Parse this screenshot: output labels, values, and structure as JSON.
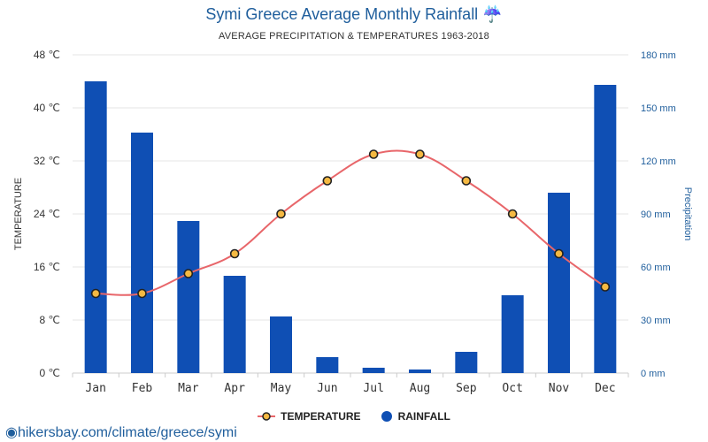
{
  "title": "Symi Greece Average Monthly Rainfall ☔",
  "subtitle": "AVERAGE PRECIPITATION & TEMPERATURES 1963-2018",
  "source": "hikersbay.com/climate/greece/symi",
  "colors": {
    "temperature_line": "#e8666a",
    "temperature_marker": "#f5b942",
    "rainfall": "#0f4fb4",
    "title": "#1f5e9c"
  },
  "chart_data": {
    "type": "bar",
    "categories": [
      "Jan",
      "Feb",
      "Mar",
      "Apr",
      "May",
      "Jun",
      "Jul",
      "Aug",
      "Sep",
      "Oct",
      "Nov",
      "Dec"
    ],
    "series": [
      {
        "name": "TEMPERATURE",
        "type": "line",
        "axis": "left",
        "values": [
          12,
          12,
          15,
          18,
          24,
          29,
          33,
          33,
          29,
          24,
          18,
          13
        ]
      },
      {
        "name": "RAINFALL",
        "type": "bar",
        "axis": "right",
        "values": [
          165,
          136,
          86,
          55,
          32,
          9,
          3,
          2,
          12,
          44,
          102,
          163
        ]
      }
    ],
    "y_left": {
      "label": "TEMPERATURE",
      "range": [
        0,
        48
      ],
      "ticks": [
        "0 ℃",
        "8 ℃",
        "16 ℃",
        "24 ℃",
        "32 ℃",
        "40 ℃",
        "48 ℃"
      ]
    },
    "y_right": {
      "label": "Precipitation",
      "range": [
        0,
        180
      ],
      "ticks": [
        "0 mm",
        "30 mm",
        "60 mm",
        "90 mm",
        "120 mm",
        "150 mm",
        "180 mm"
      ]
    },
    "grid": true,
    "legend_position": "bottom"
  }
}
